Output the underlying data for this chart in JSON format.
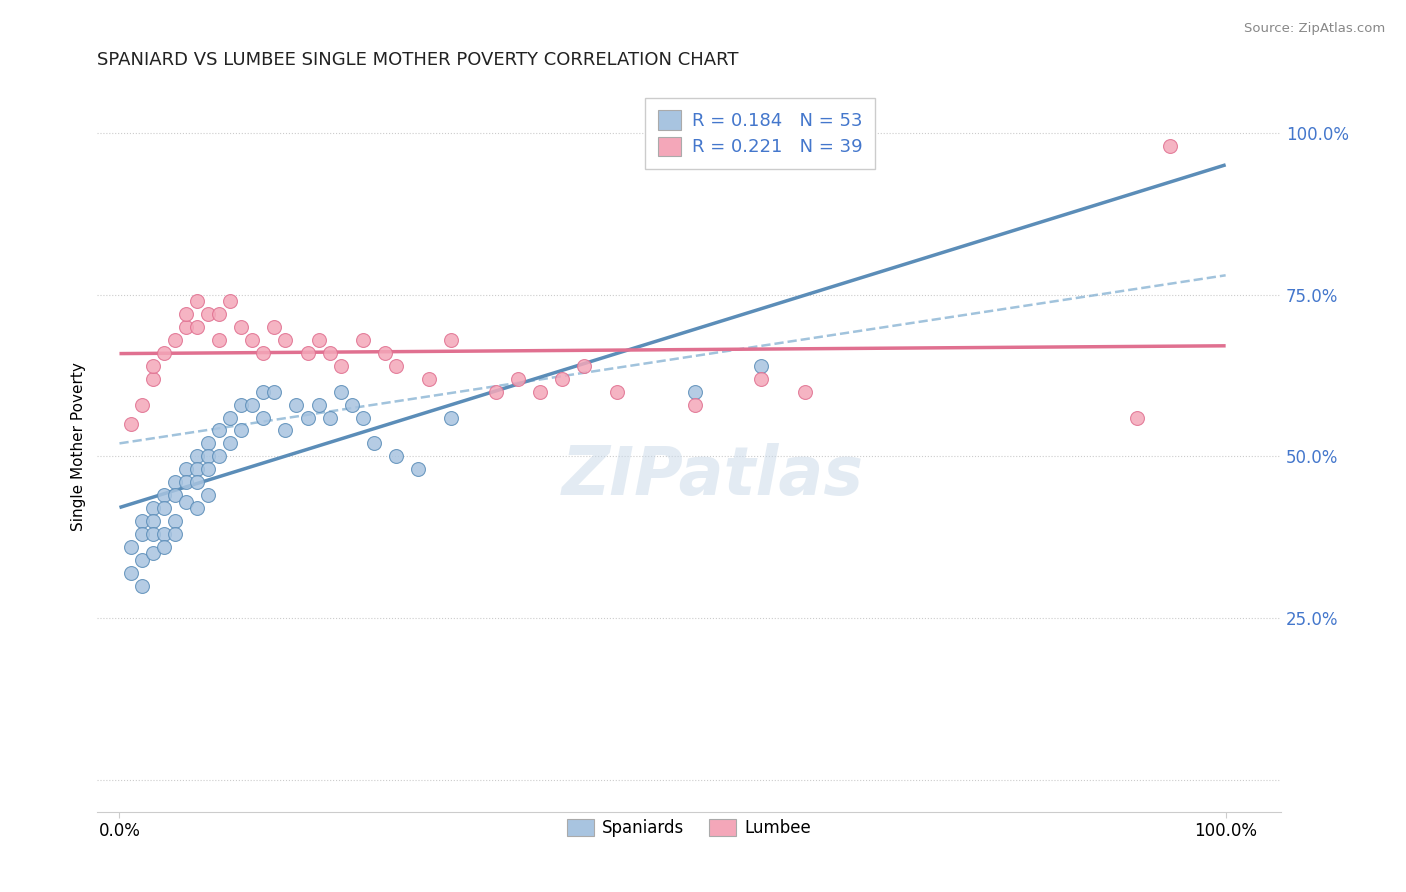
{
  "title": "SPANIARD VS LUMBEE SINGLE MOTHER POVERTY CORRELATION CHART",
  "source": "Source: ZipAtlas.com",
  "ylabel": "Single Mother Poverty",
  "r_spaniards": 0.184,
  "n_spaniards": 53,
  "r_lumbee": 0.221,
  "n_lumbee": 39,
  "color_spaniards": "#a8c4e0",
  "color_lumbee": "#f4a7b9",
  "line_color_spaniards": "#5b8db8",
  "line_color_lumbee": "#e07090",
  "legend_text_color": "#4477cc",
  "watermark": "ZIPatlas",
  "spaniards_x": [
    0.01,
    0.01,
    0.02,
    0.02,
    0.02,
    0.02,
    0.03,
    0.03,
    0.03,
    0.03,
    0.04,
    0.04,
    0.04,
    0.04,
    0.05,
    0.05,
    0.05,
    0.05,
    0.06,
    0.06,
    0.06,
    0.07,
    0.07,
    0.07,
    0.07,
    0.08,
    0.08,
    0.08,
    0.08,
    0.09,
    0.09,
    0.1,
    0.1,
    0.11,
    0.11,
    0.12,
    0.13,
    0.13,
    0.14,
    0.15,
    0.16,
    0.17,
    0.18,
    0.19,
    0.2,
    0.21,
    0.22,
    0.23,
    0.25,
    0.27,
    0.3,
    0.52,
    0.58
  ],
  "spaniards_y": [
    0.36,
    0.32,
    0.4,
    0.38,
    0.34,
    0.3,
    0.42,
    0.4,
    0.38,
    0.35,
    0.44,
    0.42,
    0.38,
    0.36,
    0.46,
    0.44,
    0.4,
    0.38,
    0.48,
    0.46,
    0.43,
    0.5,
    0.48,
    0.46,
    0.42,
    0.52,
    0.5,
    0.48,
    0.44,
    0.54,
    0.5,
    0.56,
    0.52,
    0.58,
    0.54,
    0.58,
    0.6,
    0.56,
    0.6,
    0.54,
    0.58,
    0.56,
    0.58,
    0.56,
    0.6,
    0.58,
    0.56,
    0.52,
    0.5,
    0.48,
    0.56,
    0.6,
    0.64
  ],
  "lumbee_x": [
    0.01,
    0.02,
    0.03,
    0.03,
    0.04,
    0.05,
    0.06,
    0.06,
    0.07,
    0.07,
    0.08,
    0.09,
    0.09,
    0.1,
    0.11,
    0.12,
    0.13,
    0.14,
    0.15,
    0.17,
    0.18,
    0.19,
    0.2,
    0.22,
    0.24,
    0.25,
    0.28,
    0.3,
    0.34,
    0.36,
    0.38,
    0.4,
    0.42,
    0.45,
    0.52,
    0.58,
    0.62,
    0.92,
    0.95
  ],
  "lumbee_y": [
    0.55,
    0.58,
    0.62,
    0.64,
    0.66,
    0.68,
    0.7,
    0.72,
    0.74,
    0.7,
    0.72,
    0.68,
    0.72,
    0.74,
    0.7,
    0.68,
    0.66,
    0.7,
    0.68,
    0.66,
    0.68,
    0.66,
    0.64,
    0.68,
    0.66,
    0.64,
    0.62,
    0.68,
    0.6,
    0.62,
    0.6,
    0.62,
    0.64,
    0.6,
    0.58,
    0.62,
    0.6,
    0.56,
    0.98
  ],
  "xlim": [
    -0.02,
    1.05
  ],
  "ylim": [
    -0.05,
    1.08
  ],
  "ytick_vals": [
    0.0,
    0.25,
    0.5,
    0.75,
    1.0
  ],
  "ytick_labels": [
    "",
    "25.0%",
    "50.0%",
    "75.0%",
    "100.0%"
  ]
}
